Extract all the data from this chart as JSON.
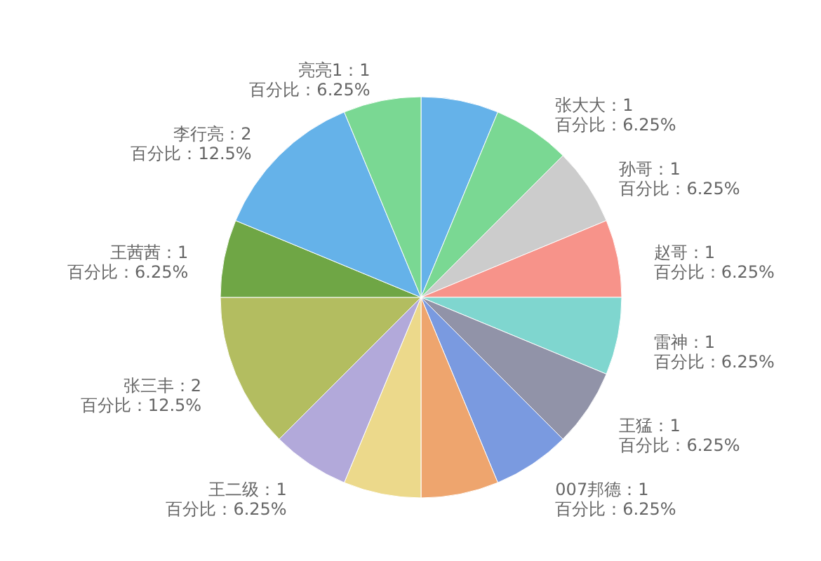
{
  "chart_data": {
    "type": "pie",
    "categories": [
      null,
      "张大大",
      "孙哥",
      "赵哥",
      "雷神",
      "王猛",
      "007邦德",
      null,
      null,
      "王二级",
      "张三丰",
      "王茜茜",
      "李行亮",
      "亮亮1"
    ],
    "values": [
      1,
      1,
      1,
      1,
      1,
      1,
      1,
      1,
      1,
      1,
      2,
      1,
      2,
      1
    ],
    "value_labels": [
      null,
      "：1\n百分比：6.25%",
      "：1\n百分比：6.25%",
      "：1\n百分比：6.25%",
      "：1\n百分比：6.25%",
      "：1\n百分比：6.25%",
      "：1\n百分比：6.25%",
      null,
      null,
      "：1\n百分比：6.25%",
      "：2\n百分比：12.5%",
      "：1\n百分比：6.25%",
      "：2\n百分比：12.5%",
      "：1\n百分比：6.25%"
    ],
    "colors": [
      "#65b2e9",
      "#7ad893",
      "#cccccc",
      "#f7938a",
      "#7fd6cf",
      "#9193a8",
      "#7a9ae0",
      "#eea56e",
      "#ecd98b",
      "#b2a9da",
      "#b3bd60",
      "#6fa645",
      "#65b2e9",
      "#7ad893"
    ]
  }
}
